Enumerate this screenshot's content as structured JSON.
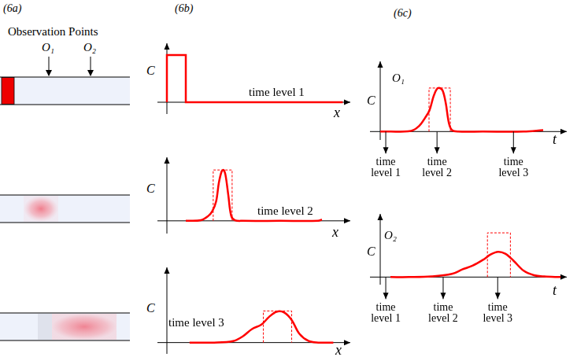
{
  "panel_labels": [
    "(6a)",
    "(6b)",
    "(6c)"
  ],
  "tubes": {
    "title": "Observation Points",
    "points": [
      "O₁",
      "O₂"
    ]
  },
  "chart_data": [
    {
      "type": "line",
      "y_label": "C",
      "x_label": "x",
      "annotation": "time level 1",
      "color": "#ff0000",
      "tick_labels": false,
      "xlim": [
        -0.5,
        9.7
      ],
      "ylim": [
        -0.2,
        1.0
      ],
      "x": [
        0,
        0,
        1,
        1,
        9.3
      ],
      "values": [
        0,
        0.8,
        0.8,
        0,
        0
      ]
    },
    {
      "type": "line",
      "y_label": "C",
      "x_label": "x",
      "annotation": "time level 2",
      "color": "#ff0000",
      "tick_labels": false,
      "xlim": [
        -0.5,
        9.7
      ],
      "ylim": [
        -0.2,
        1.0
      ],
      "x": [
        1.0,
        1.8,
        2.2,
        2.4,
        2.6,
        2.75,
        2.9,
        3.0,
        3.1,
        3.25,
        3.4,
        3.6,
        4.0,
        6.0,
        8.0,
        8.2
      ],
      "values": [
        0,
        0.01,
        0.08,
        0.15,
        0.3,
        0.6,
        0.78,
        0.8,
        0.72,
        0.4,
        0.08,
        0.01,
        0,
        0,
        0,
        0.02
      ],
      "window": {
        "x": [
          2.45,
          3.45
        ],
        "height": 0.8,
        "line_style": "dashed"
      }
    },
    {
      "type": "line",
      "y_label": "C",
      "x_label": "x",
      "annotation": "time level 3",
      "color": "#ff0000",
      "tick_labels": false,
      "xlim": [
        -0.5,
        9.7
      ],
      "ylim": [
        -0.15,
        1.0
      ],
      "x": [
        1.2,
        2.5,
        3.5,
        4.0,
        4.5,
        5.0,
        5.4,
        5.8,
        6.2,
        6.6,
        7.0,
        7.5,
        8.0,
        8.8
      ],
      "values": [
        0,
        0,
        0.02,
        0.08,
        0.18,
        0.24,
        0.34,
        0.41,
        0.4,
        0.3,
        0.12,
        0.02,
        0,
        0
      ],
      "window": {
        "x": [
          5.1,
          6.6
        ],
        "height": 0.42,
        "line_style": "dashed"
      }
    },
    {
      "type": "line",
      "title": "O₁",
      "y_label": "C",
      "x_label": "t",
      "color": "#ff0000",
      "tick_labels": false,
      "xlim": [
        -0.5,
        9.1
      ],
      "ylim": [
        -0.12,
        1.0
      ],
      "x": [
        0,
        1.5,
        1.9,
        2.2,
        2.4,
        2.6,
        2.75,
        2.9,
        3.05,
        3.2,
        3.35,
        3.5,
        3.8,
        5,
        7,
        7.95
      ],
      "values": [
        0,
        0.01,
        0.08,
        0.2,
        0.3,
        0.5,
        0.6,
        0.62,
        0.58,
        0.4,
        0.12,
        0.02,
        0,
        0,
        0,
        0.02
      ],
      "window": {
        "x": [
          2.38,
          3.42
        ],
        "height": 0.62,
        "line_style": "dashed"
      },
      "markers": [
        {
          "x": 0.27,
          "label": "time level 1"
        },
        {
          "x": 2.77,
          "label": "time level 2"
        },
        {
          "x": 6.5,
          "label": "time level 3"
        }
      ]
    },
    {
      "type": "line",
      "title": "O₂",
      "y_label": "C",
      "x_label": "t",
      "color": "#ff0000",
      "tick_labels": false,
      "xlim": [
        -0.5,
        9.1
      ],
      "ylim": [
        -0.12,
        1.0
      ],
      "x": [
        0.5,
        1.4,
        2.5,
        3.5,
        4.0,
        4.5,
        5.0,
        5.4,
        5.75,
        6.1,
        6.5,
        7.0,
        7.5,
        8.0,
        8.8
      ],
      "values": [
        0,
        0,
        0.01,
        0.05,
        0.12,
        0.18,
        0.27,
        0.36,
        0.4,
        0.37,
        0.26,
        0.1,
        0.03,
        0.01,
        0
      ],
      "window": {
        "x": [
          5.23,
          6.35
        ],
        "height": 0.7,
        "line_style": "dashed"
      },
      "markers": [
        {
          "x": 0.27,
          "label": "time level 1"
        },
        {
          "x": 3.07,
          "label": "time level 2"
        },
        {
          "x": 5.73,
          "label": "time level 3"
        }
      ]
    }
  ]
}
